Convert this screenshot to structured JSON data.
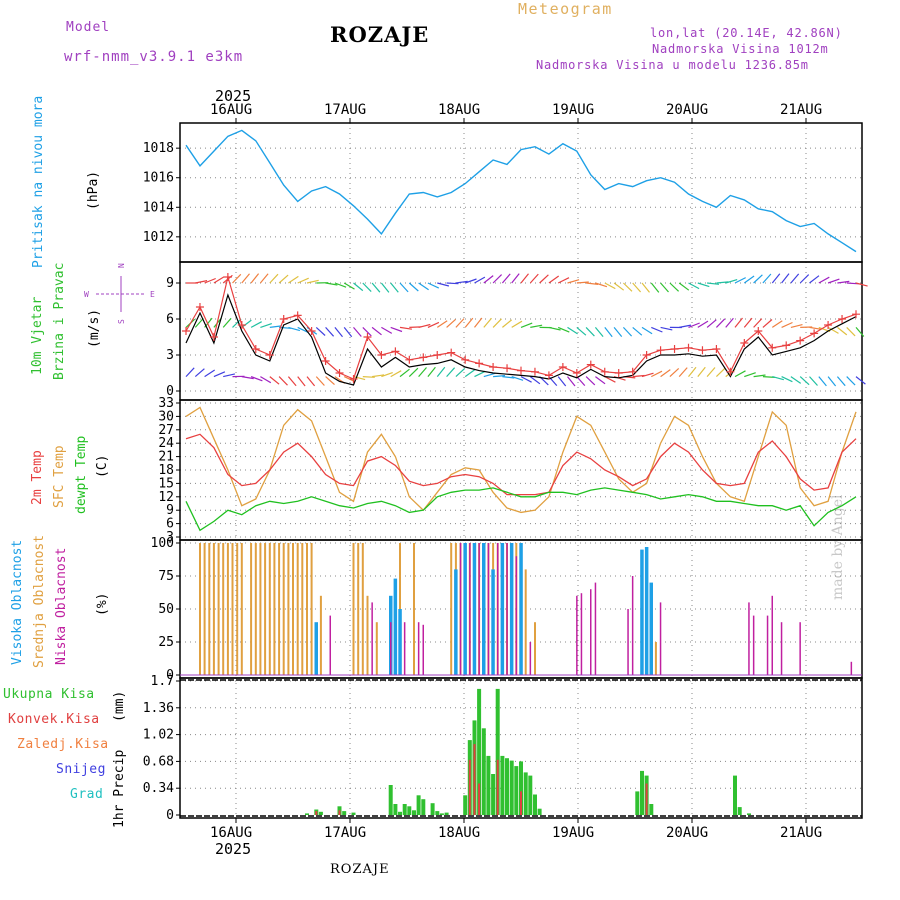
{
  "header": {
    "model_label": "Model",
    "model_name": "wrf-nmm_v3.9.1 e3km",
    "title": "ROZAJE",
    "meteogram": "Meteogram",
    "coords": "lon,lat (20.14E, 42.86N)",
    "altitude": "Nadmorska Visina 1012m",
    "model_altitude": "Nadmorska Visina u modelu 1236.85m"
  },
  "footer": {
    "station": "ROZAJE",
    "credit": "made by Angel"
  },
  "time_axis": {
    "year": "2025",
    "days": [
      "16AUG",
      "17AUG",
      "18AUG",
      "19AUG",
      "20AUG",
      "21AUG"
    ],
    "hours_total": 144
  },
  "colors": {
    "pressure": "#1ea0e6",
    "wind_obs": "#000000",
    "wind_plus": "#e84040",
    "temp2m": "#e84040",
    "sfc_temp": "#e0a040",
    "dewpt": "#20c020",
    "cloud_high": "#1ea0e6",
    "cloud_mid": "#e0a040",
    "cloud_low": "#c020a0",
    "precip_total": "#30c030",
    "precip_conv": "#e04040"
  },
  "chart_data": [
    {
      "type": "line",
      "panel": "pressure",
      "ylabel_main": "Pritisak na nivou mora",
      "ylabel_unit": "(hPa)",
      "y_ticks": [
        "1012",
        "1014",
        "1016",
        "1018"
      ],
      "ylim": [
        1010.5,
        1019.5
      ],
      "x_hours": [
        0,
        3,
        6,
        9,
        12,
        15,
        18,
        21,
        24,
        27,
        30,
        33,
        36,
        39,
        42,
        45,
        48,
        51,
        54,
        57,
        60,
        63,
        66,
        69,
        72,
        75,
        78,
        81,
        84,
        87,
        90,
        93,
        96,
        99,
        102,
        105,
        108,
        111,
        114,
        117,
        120,
        123,
        126,
        129,
        132,
        135,
        138,
        141,
        144
      ],
      "series": [
        {
          "name": "SLP",
          "values": [
            1018.2,
            1016.8,
            1017.8,
            1018.8,
            1019.2,
            1018.5,
            1017.0,
            1015.5,
            1014.4,
            1015.1,
            1015.4,
            1014.9,
            1014.1,
            1013.2,
            1012.2,
            1013.6,
            1014.9,
            1015.0,
            1014.7,
            1015.0,
            1015.6,
            1016.4,
            1017.2,
            1016.9,
            1017.9,
            1018.1,
            1017.6,
            1018.3,
            1017.8,
            1016.2,
            1015.2,
            1015.6,
            1015.4,
            1015.8,
            1016.0,
            1015.7,
            1014.9,
            1014.4,
            1014.0,
            1014.8,
            1014.5,
            1013.9,
            1013.7,
            1013.1,
            1012.7,
            1012.9,
            1012.2,
            1011.6,
            1011.0
          ]
        }
      ]
    },
    {
      "type": "line",
      "panel": "wind",
      "ylabel_main": "10m Vjetar",
      "ylabel_sub": "Brzina i Pravac",
      "ylabel_unit": "(m/s)",
      "compass": {
        "n": "N",
        "s": "S",
        "e": "E",
        "w": "W"
      },
      "y_ticks": [
        "0",
        "3",
        "6",
        "9"
      ],
      "ylim": [
        -0.5,
        10.5
      ],
      "x_hours": [
        0,
        3,
        6,
        9,
        12,
        15,
        18,
        21,
        24,
        27,
        30,
        33,
        36,
        39,
        42,
        45,
        48,
        51,
        54,
        57,
        60,
        63,
        66,
        69,
        72,
        75,
        78,
        81,
        84,
        87,
        90,
        93,
        96,
        99,
        102,
        105,
        108,
        111,
        114,
        117,
        120,
        123,
        126,
        129,
        132,
        135,
        138,
        141,
        144
      ],
      "series": [
        {
          "name": "speed",
          "values": [
            4.0,
            6.5,
            4.0,
            8.0,
            5.0,
            3.0,
            2.5,
            5.5,
            6.0,
            4.5,
            1.5,
            0.8,
            0.5,
            3.5,
            2.0,
            2.8,
            2.0,
            2.2,
            2.3,
            2.6,
            2.0,
            1.7,
            1.5,
            1.4,
            1.3,
            1.2,
            1.0,
            1.5,
            1.1,
            1.8,
            1.2,
            1.1,
            1.3,
            2.5,
            3.0,
            3.0,
            3.1,
            2.9,
            3.0,
            1.2,
            3.5,
            4.5,
            3.0,
            3.3,
            3.6,
            4.2,
            5.0,
            5.6,
            6.2
          ]
        },
        {
          "name": "gust",
          "values": [
            5.0,
            7.0,
            4.5,
            9.5,
            5.5,
            3.5,
            3.0,
            6.0,
            6.3,
            5.0,
            2.5,
            1.5,
            1.0,
            4.5,
            3.0,
            3.3,
            2.6,
            2.8,
            3.0,
            3.2,
            2.6,
            2.3,
            2.0,
            1.9,
            1.7,
            1.6,
            1.3,
            2.0,
            1.5,
            2.2,
            1.6,
            1.5,
            1.6,
            3.0,
            3.4,
            3.5,
            3.6,
            3.4,
            3.5,
            1.6,
            4.0,
            5.0,
            3.6,
            3.8,
            4.2,
            4.8,
            5.5,
            6.0,
            6.4
          ]
        }
      ],
      "barb_rows": [
        9,
        5.3,
        1.2
      ]
    },
    {
      "type": "line",
      "panel": "temperature",
      "ylabel_lines": [
        "2m Temp",
        "SFC Temp",
        "dewpt Temp"
      ],
      "ylabel_unit": "(C)",
      "y_ticks": [
        "3",
        "6",
        "9",
        "12",
        "15",
        "18",
        "21",
        "24",
        "27",
        "30",
        "33"
      ],
      "ylim": [
        3,
        33
      ],
      "x_hours": [
        0,
        3,
        6,
        9,
        12,
        15,
        18,
        21,
        24,
        27,
        30,
        33,
        36,
        39,
        42,
        45,
        48,
        51,
        54,
        57,
        60,
        63,
        66,
        69,
        72,
        75,
        78,
        81,
        84,
        87,
        90,
        93,
        96,
        99,
        102,
        105,
        108,
        111,
        114,
        117,
        120,
        123,
        126,
        129,
        132,
        135,
        138,
        141,
        144
      ],
      "series": [
        {
          "name": "2m Temp",
          "values": [
            25,
            26,
            23,
            17,
            14.5,
            15,
            18,
            22,
            24,
            21,
            17,
            15,
            14.5,
            20,
            21,
            19,
            15.5,
            14.5,
            15,
            16.5,
            17,
            16.5,
            15,
            12.5,
            12.5,
            12.5,
            13,
            19,
            22,
            20.5,
            18,
            16.5,
            14.5,
            16,
            21,
            24,
            22,
            18,
            15,
            14.5,
            15,
            22,
            24.5,
            21,
            16,
            13.5,
            14,
            22,
            25
          ]
        },
        {
          "name": "SFC Temp",
          "values": [
            30,
            32,
            25,
            18,
            10,
            11.5,
            18,
            28,
            31.5,
            29,
            21,
            13,
            11,
            22,
            26,
            21,
            12,
            9,
            13,
            17,
            18.5,
            18,
            13,
            9.5,
            8.5,
            9,
            12,
            22,
            30,
            28,
            22,
            16,
            13,
            15,
            24,
            30,
            28,
            21,
            15,
            12,
            11,
            21,
            31,
            28,
            14,
            10,
            11,
            22,
            31
          ]
        },
        {
          "name": "dewpt",
          "values": [
            11,
            4.5,
            6.5,
            9,
            8,
            10,
            11,
            10.5,
            11,
            12,
            11,
            10,
            9.5,
            10.5,
            11,
            10,
            8.5,
            9,
            12,
            13,
            13.5,
            13.5,
            14,
            13,
            12,
            12,
            13,
            13,
            12.5,
            13.5,
            14,
            13.5,
            13,
            12.5,
            11.5,
            12,
            12.5,
            12,
            11,
            11,
            10.5,
            10,
            10,
            9,
            10,
            5.5,
            8.5,
            10,
            12
          ]
        }
      ]
    },
    {
      "type": "bar",
      "panel": "clouds",
      "ylabel_lines": [
        "Visoka Oblacnost",
        "Srednja Oblacnost",
        "Niska Oblacnost"
      ],
      "ylabel_unit": "(%)",
      "y_ticks": [
        "0",
        "25",
        "50",
        "75",
        "100"
      ],
      "ylim": [
        0,
        100
      ],
      "series": [
        {
          "name": "Srednja",
          "hours": [
            3,
            4,
            5,
            6,
            7,
            8,
            9,
            10,
            11,
            12,
            14,
            15,
            16,
            17,
            18,
            19,
            20,
            21,
            22,
            23,
            24,
            25,
            26,
            27,
            29,
            36,
            37,
            38,
            39,
            41,
            46,
            49,
            57,
            58,
            59,
            60,
            61,
            62,
            63,
            64,
            65,
            66,
            67,
            68,
            69,
            70,
            71,
            72,
            73,
            75,
            98,
            99,
            100,
            101
          ],
          "values": [
            100,
            100,
            100,
            100,
            100,
            100,
            100,
            100,
            100,
            100,
            100,
            100,
            100,
            100,
            100,
            100,
            100,
            100,
            100,
            100,
            100,
            100,
            100,
            100,
            60,
            100,
            100,
            100,
            60,
            40,
            100,
            100,
            100,
            100,
            100,
            100,
            100,
            100,
            100,
            100,
            100,
            100,
            100,
            100,
            100,
            100,
            100,
            100,
            80,
            40,
            25,
            25,
            25,
            25
          ]
        },
        {
          "name": "Visoka",
          "hours": [
            28,
            44,
            45,
            46,
            58,
            60,
            62,
            64,
            66,
            68,
            70,
            72,
            98,
            99,
            100
          ],
          "values": [
            40,
            60,
            73,
            50,
            80,
            100,
            100,
            100,
            80,
            100,
            100,
            100,
            95,
            97,
            70
          ]
        },
        {
          "name": "Niska",
          "hours": [
            31,
            40,
            44,
            47,
            50,
            51,
            59,
            61,
            63,
            65,
            67,
            69,
            71,
            74,
            84,
            85,
            87,
            88,
            95,
            96,
            102,
            121,
            122,
            125,
            126,
            128,
            132,
            143
          ],
          "values": [
            45,
            55,
            40,
            40,
            40,
            38,
            100,
            100,
            100,
            100,
            100,
            100,
            90,
            25,
            60,
            62,
            65,
            70,
            50,
            75,
            55,
            55,
            45,
            45,
            60,
            40,
            40,
            10
          ]
        }
      ]
    },
    {
      "type": "bar",
      "panel": "precip",
      "legend": [
        "Ukupna Kisa",
        "Konvek.Kisa",
        "Zaledj.Kisa",
        "Snijeg",
        "Grad"
      ],
      "ylabel_main": "1hr Precip",
      "ylabel_unit": "(mm)",
      "y_ticks": [
        "0",
        "0.34",
        "0.68",
        "1.02",
        "1.36",
        "1.7"
      ],
      "ylim": [
        0,
        1.7
      ],
      "series": [
        {
          "name": "Ukupna Kisa",
          "hours": [
            26,
            28,
            29,
            33,
            34,
            36,
            44,
            45,
            46,
            47,
            48,
            49,
            50,
            51,
            53,
            54,
            55,
            56,
            60,
            61,
            62,
            63,
            64,
            65,
            66,
            67,
            68,
            69,
            70,
            71,
            72,
            73,
            74,
            75,
            76,
            97,
            98,
            99,
            100,
            118,
            119,
            121
          ],
          "values": [
            0.02,
            0.07,
            0.04,
            0.11,
            0.05,
            0.03,
            0.38,
            0.14,
            0.04,
            0.14,
            0.11,
            0.06,
            0.25,
            0.2,
            0.15,
            0.05,
            0.02,
            0.03,
            0.25,
            0.95,
            1.2,
            1.6,
            1.1,
            0.75,
            0.52,
            1.6,
            0.75,
            0.72,
            0.69,
            0.62,
            0.68,
            0.54,
            0.5,
            0.26,
            0.08,
            0.3,
            0.56,
            0.5,
            0.14,
            0.5,
            0.1,
            0.02
          ]
        },
        {
          "name": "Konvek.Kisa",
          "hours": [
            28,
            33,
            61,
            62,
            63,
            67,
            72,
            99
          ],
          "values": [
            0.05,
            0.06,
            0.7,
            0.9,
            0.4,
            0.7,
            0.3,
            0.4
          ]
        }
      ]
    }
  ]
}
